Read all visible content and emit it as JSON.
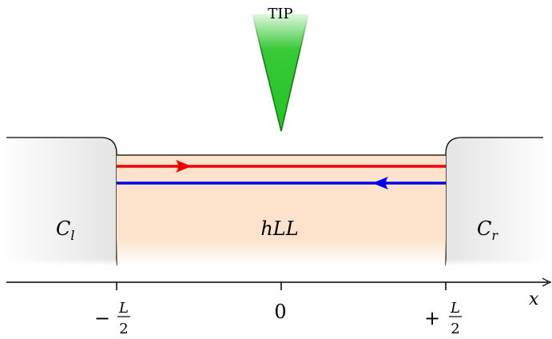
{
  "tip": {
    "label": "TIP"
  },
  "regions": {
    "left_contact": {
      "base": "C",
      "sub": "l"
    },
    "right_contact": {
      "base": "C",
      "sub": "r"
    },
    "channel": {
      "label": "hLL"
    }
  },
  "axis": {
    "variable": "x",
    "ticks": [
      {
        "sign": "−",
        "num": "L",
        "den": "2"
      },
      {
        "value": "0"
      },
      {
        "sign": "+",
        "num": "L",
        "den": "2"
      }
    ]
  },
  "colors": {
    "tip": "#22c422",
    "tip_dark": "#157a15",
    "channel": "#fde3cb",
    "contact": "#e6e6e6",
    "edge_forward": "#ee0000",
    "edge_backward": "#0000ee"
  }
}
